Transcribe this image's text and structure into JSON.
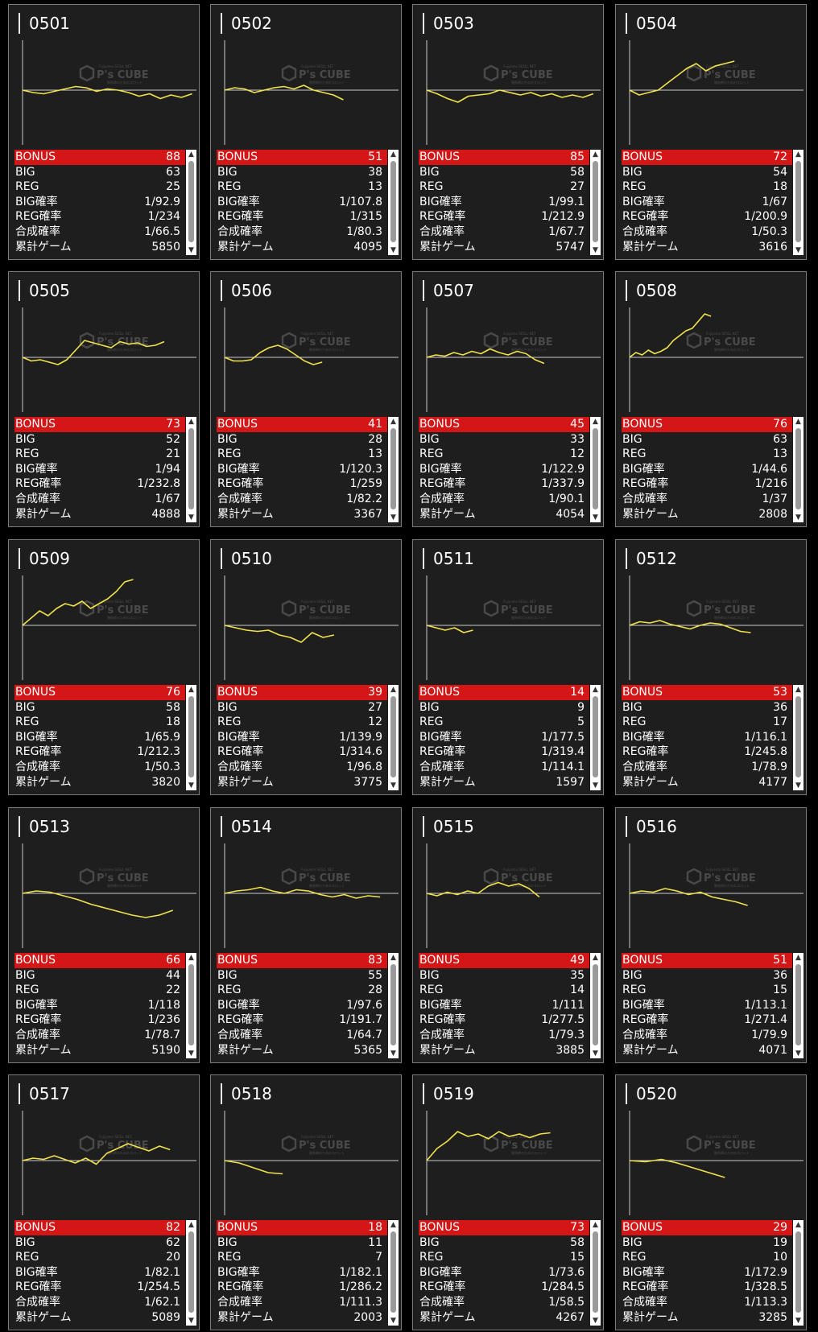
{
  "labels": [
    "BONUS",
    "BIG",
    "REG",
    "BIG確率",
    "REG確率",
    "合成確率",
    "累計ゲーム"
  ],
  "watermark": {
    "brand": "P's CUBE",
    "tagline": "Fujiyama SESLL NET",
    "sub": "勝負師のためのスロット"
  },
  "colors": {
    "line": "#f2e34c",
    "bonus_row": "#d51616",
    "axis": "#cccccc"
  },
  "cards": [
    {
      "id": "0501",
      "values": [
        "88",
        "63",
        "25",
        "1/92.9",
        "1/234",
        "1/66.5",
        "5850"
      ],
      "graph": [
        0,
        -2,
        -3,
        -1,
        1,
        3,
        2,
        -1,
        1,
        0,
        -2,
        -5,
        -3,
        -7,
        -4,
        -6,
        -3
      ],
      "games": 5850
    },
    {
      "id": "0502",
      "values": [
        "51",
        "38",
        "13",
        "1/107.8",
        "1/315",
        "1/80.3",
        "4095"
      ],
      "graph": [
        0,
        2,
        1,
        -2,
        0,
        2,
        3,
        1,
        4,
        0,
        -2,
        -4,
        -8
      ],
      "games": 4095
    },
    {
      "id": "0503",
      "values": [
        "85",
        "58",
        "27",
        "1/99.1",
        "1/212.9",
        "1/67.7",
        "5747"
      ],
      "graph": [
        0,
        -3,
        -7,
        -10,
        -5,
        -4,
        -3,
        0,
        -2,
        -4,
        -2,
        -5,
        -3,
        -6,
        -4,
        -6,
        -3
      ],
      "games": 5747
    },
    {
      "id": "0504",
      "values": [
        "72",
        "54",
        "18",
        "1/67",
        "1/200.9",
        "1/50.3",
        "3616"
      ],
      "graph": [
        0,
        -4,
        -2,
        0,
        6,
        12,
        18,
        22,
        16,
        20,
        22,
        24
      ],
      "games": 3616
    },
    {
      "id": "0505",
      "values": [
        "73",
        "52",
        "21",
        "1/94",
        "1/232.8",
        "1/67",
        "4888"
      ],
      "graph": [
        0,
        -3,
        -2,
        -4,
        -6,
        -2,
        6,
        14,
        12,
        10,
        8,
        13,
        11,
        12,
        9,
        10,
        13
      ],
      "games": 4888
    },
    {
      "id": "0506",
      "values": [
        "41",
        "28",
        "13",
        "1/120.3",
        "1/259",
        "1/82.2",
        "3367"
      ],
      "graph": [
        0,
        -3,
        -3,
        -2,
        4,
        8,
        10,
        7,
        2,
        -3,
        -6,
        -4
      ],
      "games": 3367
    },
    {
      "id": "0507",
      "values": [
        "45",
        "33",
        "12",
        "1/122.9",
        "1/337.9",
        "1/90.1",
        "4054"
      ],
      "graph": [
        0,
        2,
        1,
        4,
        2,
        5,
        3,
        7,
        4,
        2,
        5,
        3,
        -2,
        -5
      ],
      "games": 4054
    },
    {
      "id": "0508",
      "values": [
        "76",
        "63",
        "13",
        "1/44.6",
        "1/216",
        "1/37",
        "2808"
      ],
      "graph": [
        0,
        4,
        2,
        6,
        3,
        5,
        8,
        14,
        18,
        22,
        24,
        30,
        36,
        34
      ],
      "games": 2808
    },
    {
      "id": "0509",
      "values": [
        "76",
        "58",
        "18",
        "1/65.9",
        "1/212.3",
        "1/50.3",
        "3820"
      ],
      "graph": [
        0,
        6,
        12,
        8,
        14,
        18,
        16,
        20,
        14,
        18,
        22,
        28,
        36,
        38
      ],
      "games": 3820
    },
    {
      "id": "0510",
      "values": [
        "39",
        "27",
        "12",
        "1/139.9",
        "1/314.6",
        "1/96.8",
        "3775"
      ],
      "graph": [
        0,
        -2,
        -4,
        -5,
        -4,
        -8,
        -10,
        -14,
        -6,
        -10,
        -8
      ],
      "games": 3775
    },
    {
      "id": "0511",
      "values": [
        "14",
        "9",
        "5",
        "1/177.5",
        "1/319.4",
        "1/114.1",
        "1597"
      ],
      "graph": [
        0,
        -2,
        -4,
        -2,
        -6,
        -4
      ],
      "games": 1597
    },
    {
      "id": "0512",
      "values": [
        "53",
        "36",
        "17",
        "1/116.1",
        "1/245.8",
        "1/78.9",
        "4177"
      ],
      "graph": [
        0,
        3,
        2,
        4,
        1,
        -1,
        -3,
        0,
        2,
        1,
        -2,
        -5,
        -6
      ],
      "games": 4177
    },
    {
      "id": "0513",
      "values": [
        "66",
        "44",
        "22",
        "1/118",
        "1/236",
        "1/78.7",
        "5190"
      ],
      "graph": [
        0,
        2,
        1,
        -2,
        -5,
        -9,
        -12,
        -15,
        -18,
        -20,
        -18,
        -14
      ],
      "games": 5190
    },
    {
      "id": "0514",
      "values": [
        "83",
        "55",
        "28",
        "1/97.6",
        "1/191.7",
        "1/64.7",
        "5365"
      ],
      "graph": [
        0,
        2,
        3,
        5,
        2,
        0,
        3,
        2,
        -1,
        -3,
        -1,
        -4,
        -2,
        -3
      ],
      "games": 5365
    },
    {
      "id": "0515",
      "values": [
        "49",
        "35",
        "14",
        "1/111",
        "1/277.5",
        "1/79.3",
        "3885"
      ],
      "graph": [
        0,
        -2,
        1,
        -1,
        2,
        0,
        6,
        9,
        6,
        8,
        4,
        -3
      ],
      "games": 3885
    },
    {
      "id": "0516",
      "values": [
        "51",
        "36",
        "15",
        "1/113.1",
        "1/271.4",
        "1/79.9",
        "4071"
      ],
      "graph": [
        0,
        2,
        1,
        4,
        2,
        -1,
        1,
        -3,
        -5,
        -7,
        -10
      ],
      "games": 4071
    },
    {
      "id": "0517",
      "values": [
        "82",
        "62",
        "20",
        "1/82.1",
        "1/254.5",
        "1/62.1",
        "5089"
      ],
      "graph": [
        0,
        2,
        1,
        4,
        1,
        -2,
        2,
        -3,
        6,
        10,
        14,
        11,
        8,
        12,
        9
      ],
      "games": 5089
    },
    {
      "id": "0518",
      "values": [
        "18",
        "11",
        "7",
        "1/182.1",
        "1/286.2",
        "1/111.3",
        "2003"
      ],
      "graph": [
        0,
        -2,
        -6,
        -10,
        -11
      ],
      "games": 2003
    },
    {
      "id": "0519",
      "values": [
        "73",
        "58",
        "15",
        "1/73.6",
        "1/284.5",
        "1/58.5",
        "4267"
      ],
      "graph": [
        0,
        10,
        16,
        24,
        20,
        22,
        18,
        24,
        20,
        22,
        19,
        22,
        23
      ],
      "games": 4267
    },
    {
      "id": "0520",
      "values": [
        "29",
        "19",
        "10",
        "1/172.9",
        "1/328.5",
        "1/113.3",
        "3285"
      ],
      "graph": [
        0,
        -1,
        1,
        -2,
        -6,
        -10,
        -14
      ],
      "games": 3285
    }
  ]
}
